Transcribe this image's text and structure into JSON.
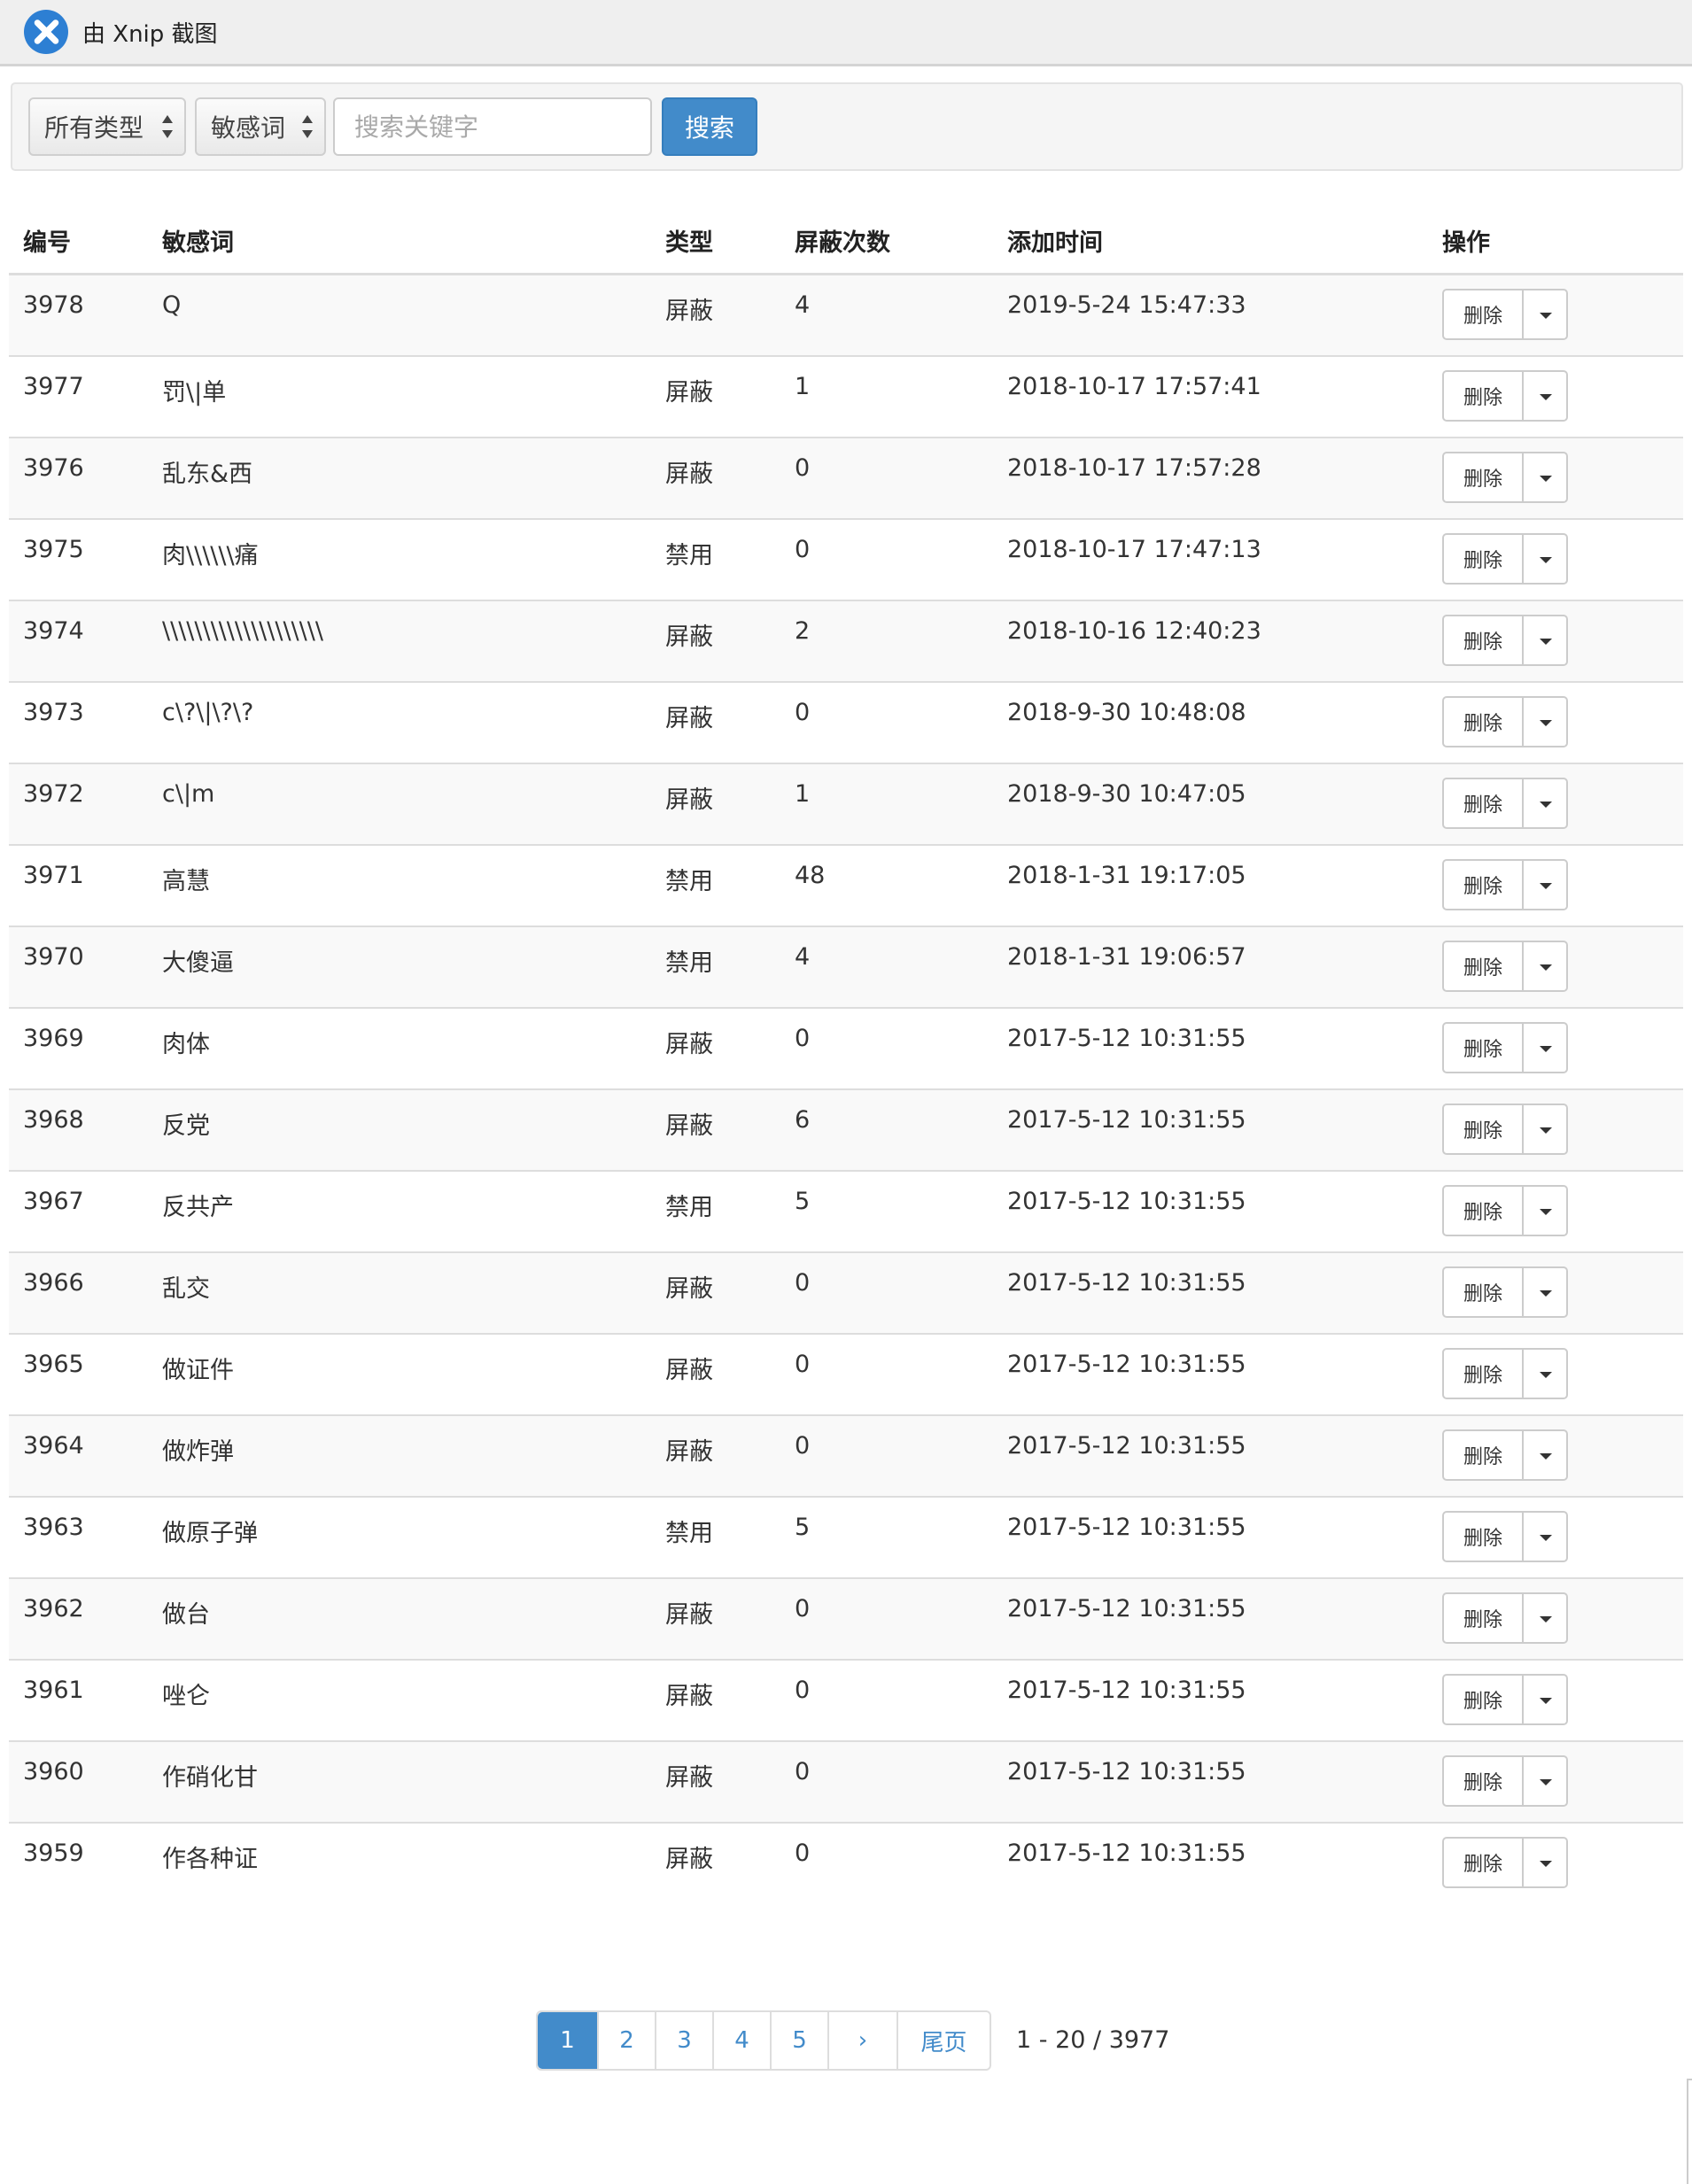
{
  "titlebar": {
    "text": "由 Xnip 截图"
  },
  "filters": {
    "type_select": "所有类型",
    "field_select": "敏感词",
    "search_placeholder": "搜索关键字",
    "search_button": "搜索"
  },
  "table": {
    "headers": {
      "id": "编号",
      "word": "敏感词",
      "type": "类型",
      "count": "屏蔽次数",
      "time": "添加时间",
      "op": "操作"
    },
    "delete_label": "删除",
    "rows": [
      {
        "id": "3978",
        "word": "Q",
        "type": "屏蔽",
        "count": "4",
        "time": "2019-5-24 15:47:33"
      },
      {
        "id": "3977",
        "word": "罚\\|单",
        "type": "屏蔽",
        "count": "1",
        "time": "2018-10-17 17:57:41"
      },
      {
        "id": "3976",
        "word": "乱东&西",
        "type": "屏蔽",
        "count": "0",
        "time": "2018-10-17 17:57:28"
      },
      {
        "id": "3975",
        "word": "肉\\\\\\\\\\\\痛",
        "type": "禁用",
        "count": "0",
        "time": "2018-10-17 17:47:13"
      },
      {
        "id": "3974",
        "word": "\\\\\\\\\\\\\\\\\\\\\\\\\\\\\\\\\\\\\\\\",
        "type": "屏蔽",
        "count": "2",
        "time": "2018-10-16 12:40:23"
      },
      {
        "id": "3973",
        "word": "c\\?\\|\\?\\?",
        "type": "屏蔽",
        "count": "0",
        "time": "2018-9-30 10:48:08"
      },
      {
        "id": "3972",
        "word": "c\\|m",
        "type": "屏蔽",
        "count": "1",
        "time": "2018-9-30 10:47:05"
      },
      {
        "id": "3971",
        "word": "高慧",
        "type": "禁用",
        "count": "48",
        "time": "2018-1-31 19:17:05"
      },
      {
        "id": "3970",
        "word": "大傻逼",
        "type": "禁用",
        "count": "4",
        "time": "2018-1-31 19:06:57"
      },
      {
        "id": "3969",
        "word": "肉体",
        "type": "屏蔽",
        "count": "0",
        "time": "2017-5-12 10:31:55"
      },
      {
        "id": "3968",
        "word": "反党",
        "type": "屏蔽",
        "count": "6",
        "time": "2017-5-12 10:31:55"
      },
      {
        "id": "3967",
        "word": "反共产",
        "type": "禁用",
        "count": "5",
        "time": "2017-5-12 10:31:55"
      },
      {
        "id": "3966",
        "word": "乱交",
        "type": "屏蔽",
        "count": "0",
        "time": "2017-5-12 10:31:55"
      },
      {
        "id": "3965",
        "word": "做证件",
        "type": "屏蔽",
        "count": "0",
        "time": "2017-5-12 10:31:55"
      },
      {
        "id": "3964",
        "word": "做炸弹",
        "type": "屏蔽",
        "count": "0",
        "time": "2017-5-12 10:31:55"
      },
      {
        "id": "3963",
        "word": "做原子弹",
        "type": "禁用",
        "count": "5",
        "time": "2017-5-12 10:31:55"
      },
      {
        "id": "3962",
        "word": "做台",
        "type": "屏蔽",
        "count": "0",
        "time": "2017-5-12 10:31:55"
      },
      {
        "id": "3961",
        "word": "唑仑",
        "type": "屏蔽",
        "count": "0",
        "time": "2017-5-12 10:31:55"
      },
      {
        "id": "3960",
        "word": "作硝化甘",
        "type": "屏蔽",
        "count": "0",
        "time": "2017-5-12 10:31:55"
      },
      {
        "id": "3959",
        "word": "作各种证",
        "type": "屏蔽",
        "count": "0",
        "time": "2017-5-12 10:31:55"
      }
    ]
  },
  "pagination": {
    "pages": [
      "1",
      "2",
      "3",
      "4",
      "5"
    ],
    "current": "1",
    "next": "›",
    "last": "尾页",
    "summary": "1 - 20 / 3977"
  },
  "colors": {
    "primary": "#428bca",
    "stripe": "#f9f9f9",
    "border": "#dddddd"
  }
}
